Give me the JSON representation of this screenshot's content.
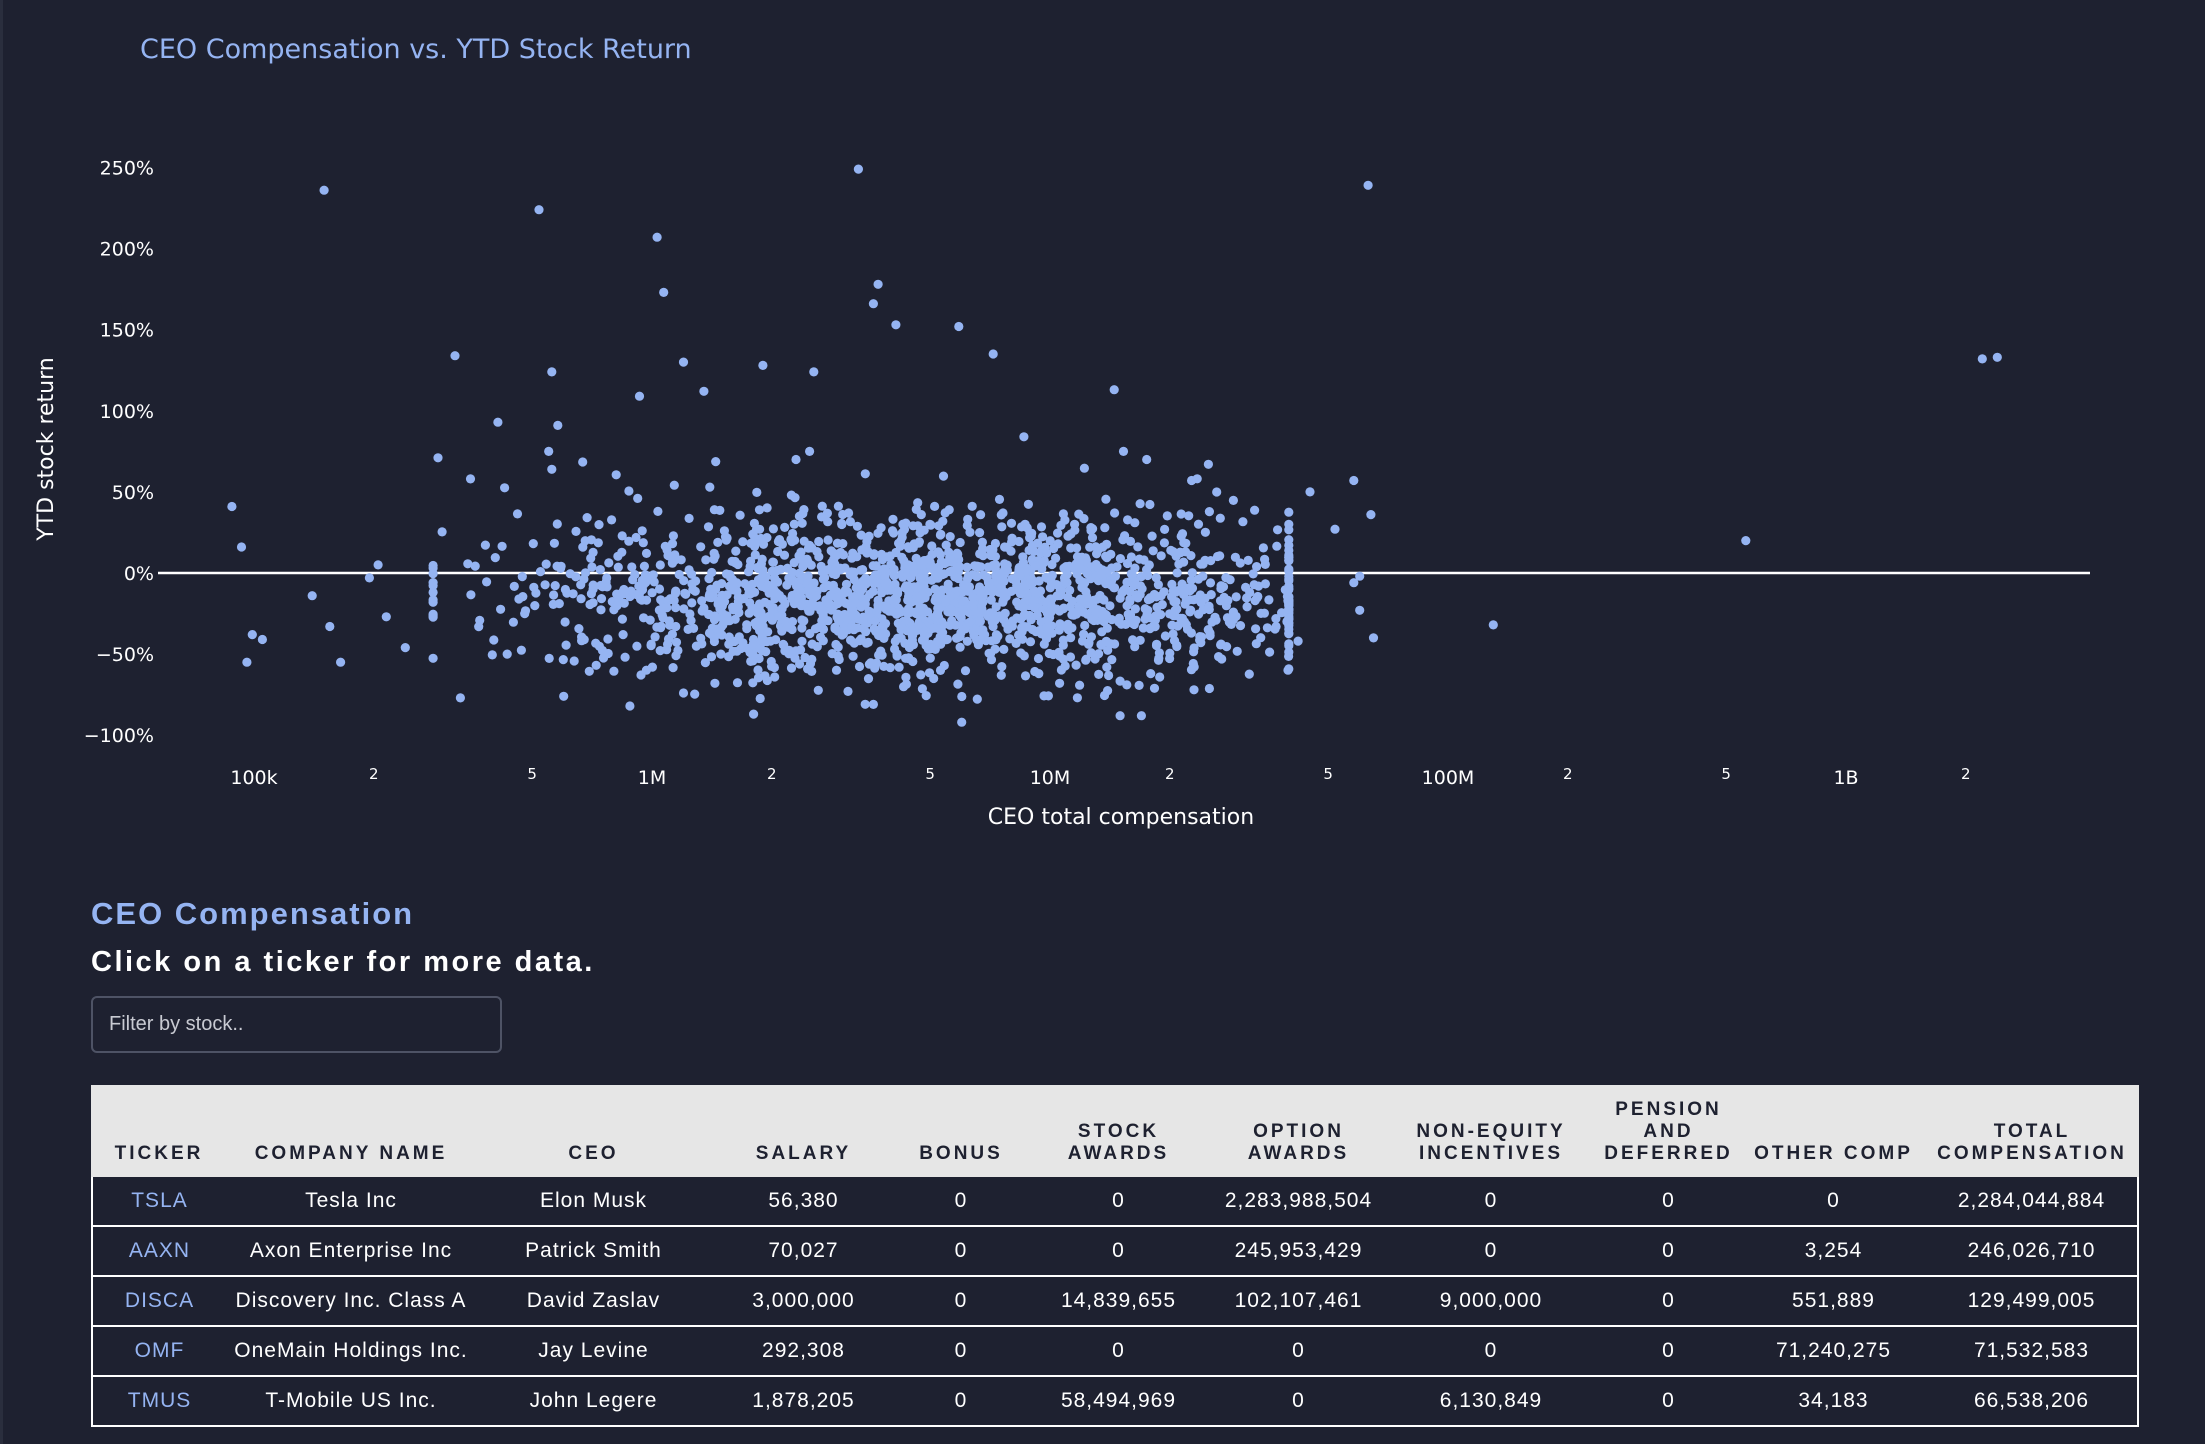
{
  "chart": {
    "title": "CEO Compensation vs. YTD Stock Return",
    "xlabel": "CEO total compensation",
    "ylabel": "YTD stock return",
    "x_major_ticks": [
      {
        "value": 100000,
        "label": "100k"
      },
      {
        "value": 1000000,
        "label": "1M"
      },
      {
        "value": 10000000,
        "label": "10M"
      },
      {
        "value": 100000000,
        "label": "100M"
      },
      {
        "value": 1000000000,
        "label": "1B"
      }
    ],
    "x_minor_ticks": [
      {
        "value": 200000,
        "label": "2"
      },
      {
        "value": 500000,
        "label": "5"
      },
      {
        "value": 2000000,
        "label": "2"
      },
      {
        "value": 5000000,
        "label": "5"
      },
      {
        "value": 20000000,
        "label": "2"
      },
      {
        "value": 50000000,
        "label": "5"
      },
      {
        "value": 200000000,
        "label": "2"
      },
      {
        "value": 500000000,
        "label": "5"
      },
      {
        "value": 2000000000,
        "label": "2"
      }
    ],
    "y_ticks": [
      {
        "value": 250,
        "label": "250%"
      },
      {
        "value": 200,
        "label": "200%"
      },
      {
        "value": 150,
        "label": "150%"
      },
      {
        "value": 100,
        "label": "100%"
      },
      {
        "value": 50,
        "label": "50%"
      },
      {
        "value": 0,
        "label": "0%"
      },
      {
        "value": -50,
        "label": "−50%"
      },
      {
        "value": -100,
        "label": "−100%"
      }
    ]
  },
  "chart_data": {
    "type": "scatter",
    "title": "CEO Compensation vs. YTD Stock Return",
    "xlabel": "CEO total compensation",
    "ylabel": "YTD stock return",
    "x_scale": "log",
    "xlim": [
      70000,
      3000000000
    ],
    "ylim": [
      -110,
      260
    ],
    "y_unit": "%",
    "grid": false,
    "zero_line": true,
    "marker_color": "#95b4f2",
    "dense_cluster": {
      "description_range_x": [
        300000,
        40000000
      ],
      "center_x": 5000000,
      "center_y": -18,
      "approx_point_count": 1900
    },
    "points": [
      {
        "x": 150000,
        "y": 236
      },
      {
        "x": 520000,
        "y": 224
      },
      {
        "x": 3300000,
        "y": 249
      },
      {
        "x": 1030000,
        "y": 207
      },
      {
        "x": 1070000,
        "y": 173
      },
      {
        "x": 3700000,
        "y": 178
      },
      {
        "x": 3600000,
        "y": 166
      },
      {
        "x": 4100000,
        "y": 153
      },
      {
        "x": 5900000,
        "y": 152
      },
      {
        "x": 63000000,
        "y": 239
      },
      {
        "x": 2200000000,
        "y": 132
      },
      {
        "x": 320000,
        "y": 134
      },
      {
        "x": 560000,
        "y": 124
      },
      {
        "x": 1200000,
        "y": 130
      },
      {
        "x": 1900000,
        "y": 128
      },
      {
        "x": 2550000,
        "y": 124
      },
      {
        "x": 7200000,
        "y": 135
      },
      {
        "x": 14500000,
        "y": 113
      },
      {
        "x": 930000,
        "y": 109
      },
      {
        "x": 1350000,
        "y": 112
      },
      {
        "x": 410000,
        "y": 93
      },
      {
        "x": 580000,
        "y": 91
      },
      {
        "x": 550000,
        "y": 75
      },
      {
        "x": 290000,
        "y": 71
      },
      {
        "x": 17500000,
        "y": 70
      },
      {
        "x": 25000000,
        "y": 67
      },
      {
        "x": 2400000000,
        "y": 133
      },
      {
        "x": 2300000,
        "y": 70
      },
      {
        "x": 8600000,
        "y": 84
      },
      {
        "x": 88000,
        "y": 41
      },
      {
        "x": 93000,
        "y": 16
      },
      {
        "x": 99000,
        "y": -38
      },
      {
        "x": 96000,
        "y": -55
      },
      {
        "x": 105000,
        "y": -41
      },
      {
        "x": 140000,
        "y": -14
      },
      {
        "x": 155000,
        "y": -33
      },
      {
        "x": 165000,
        "y": -55
      },
      {
        "x": 195000,
        "y": -3
      },
      {
        "x": 205000,
        "y": 5
      },
      {
        "x": 215000,
        "y": -27
      },
      {
        "x": 240000,
        "y": -46
      },
      {
        "x": 350000,
        "y": 58
      },
      {
        "x": 330000,
        "y": -77
      },
      {
        "x": 600000,
        "y": -76
      },
      {
        "x": 23000000,
        "y": -72
      },
      {
        "x": 27000000,
        "y": -53
      },
      {
        "x": 37000000,
        "y": -33
      },
      {
        "x": 45000000,
        "y": 50
      },
      {
        "x": 52000000,
        "y": 27
      },
      {
        "x": 58000000,
        "y": -6
      },
      {
        "x": 60000000,
        "y": -23
      },
      {
        "x": 65000000,
        "y": -40
      },
      {
        "x": 58000000,
        "y": 57
      },
      {
        "x": 64000000,
        "y": 36
      },
      {
        "x": 560000000,
        "y": 20
      },
      {
        "x": 130000000,
        "y": -32
      },
      {
        "x": 60000000,
        "y": -2
      },
      {
        "x": 42000000,
        "y": -42
      },
      {
        "x": 15000000,
        "y": -88
      },
      {
        "x": 6000000,
        "y": -92
      },
      {
        "x": 3600000,
        "y": -81
      },
      {
        "x": 1800000,
        "y": -87
      },
      {
        "x": 1200000,
        "y": -74
      },
      {
        "x": 880000,
        "y": -82
      }
    ]
  },
  "section": {
    "title": "CEO Compensation",
    "subtitle": "Click on a ticker for more data."
  },
  "filter": {
    "placeholder": "Filter by stock.."
  },
  "table": {
    "columns": [
      "TICKER",
      "COMPANY NAME",
      "CEO",
      "SALARY",
      "BONUS",
      "STOCK AWARDS",
      "OPTION AWARDS",
      "NON-EQUITY INCENTIVES",
      "PENSION AND DEFERRED",
      "OTHER COMP",
      "TOTAL COMPENSATION"
    ],
    "rows": [
      [
        "TSLA",
        "Tesla Inc",
        "Elon Musk",
        "56,380",
        "0",
        "0",
        "2,283,988,504",
        "0",
        "0",
        "0",
        "2,284,044,884"
      ],
      [
        "AAXN",
        "Axon Enterprise Inc",
        "Patrick Smith",
        "70,027",
        "0",
        "0",
        "245,953,429",
        "0",
        "0",
        "3,254",
        "246,026,710"
      ],
      [
        "DISCA",
        "Discovery Inc. Class A",
        "David Zaslav",
        "3,000,000",
        "0",
        "14,839,655",
        "102,107,461",
        "9,000,000",
        "0",
        "551,889",
        "129,499,005"
      ],
      [
        "OMF",
        "OneMain Holdings Inc.",
        "Jay Levine",
        "292,308",
        "0",
        "0",
        "0",
        "0",
        "0",
        "71,240,275",
        "71,532,583"
      ],
      [
        "TMUS",
        "T-Mobile US Inc.",
        "John Legere",
        "1,878,205",
        "0",
        "58,494,969",
        "0",
        "6,130,849",
        "0",
        "34,183",
        "66,538,206"
      ]
    ]
  },
  "colors": {
    "background": "#1e2130",
    "accent": "#95b4f2",
    "text": "#ffffff",
    "table_header_bg": "#e6e6e6"
  }
}
